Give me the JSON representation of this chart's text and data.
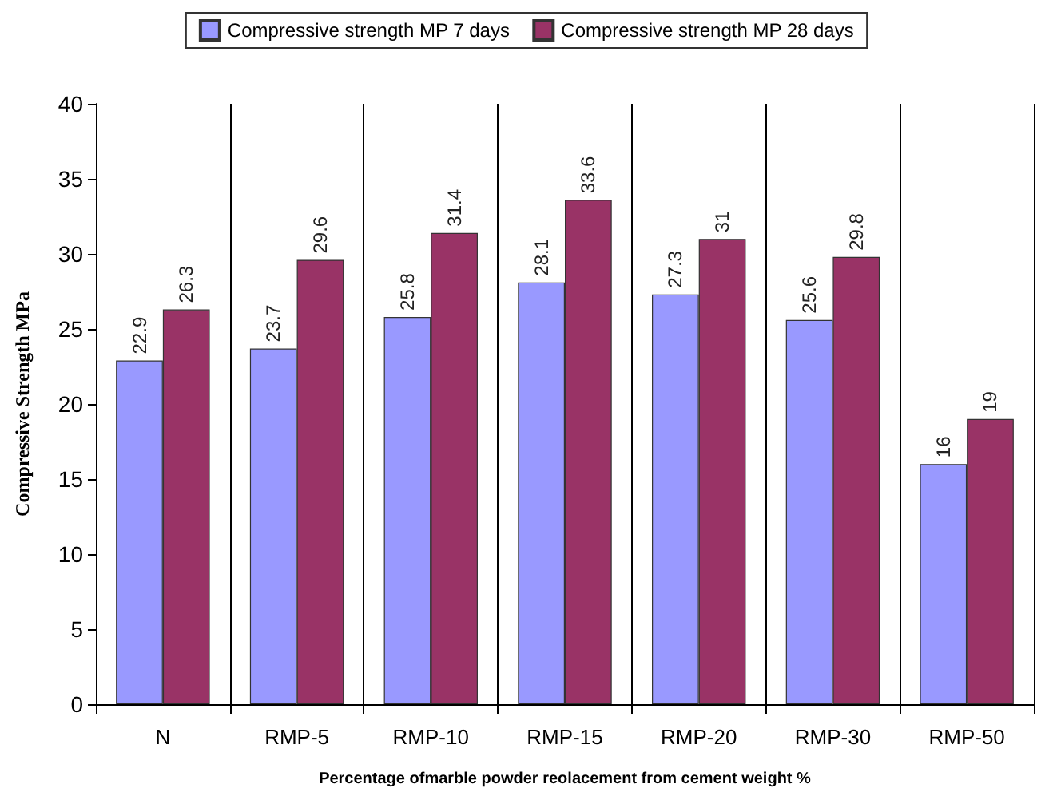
{
  "chart_data": {
    "type": "bar",
    "xlabel": "Percentage ofmarble powder reolacement from cement weight %",
    "ylabel": "Compressive Strength MPa",
    "categories": [
      "N",
      "RMP-5",
      "RMP-10",
      "RMP-15",
      "RMP-20",
      "RMP-30",
      "RMP-50"
    ],
    "series": [
      {
        "name": "Compressive strength MP 7 days",
        "color": "#9999ff",
        "values": [
          22.9,
          23.7,
          25.8,
          28.1,
          27.3,
          25.6,
          16
        ]
      },
      {
        "name": "Compressive strength MP 28 days",
        "color": "#993366",
        "values": [
          26.3,
          29.6,
          31.4,
          33.6,
          31,
          29.8,
          19
        ]
      }
    ],
    "ylim": [
      0,
      40
    ],
    "yticks": [
      0,
      5,
      10,
      15,
      20,
      25,
      30,
      35,
      40
    ],
    "grid": "x",
    "legend": "top",
    "data_labels": true
  }
}
